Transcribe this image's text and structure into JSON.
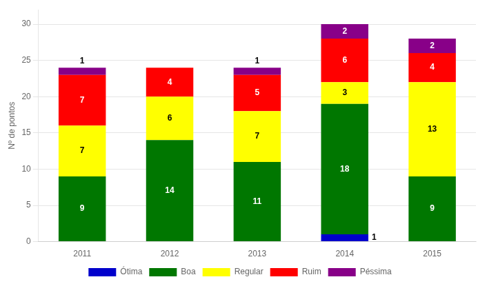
{
  "chart_data": {
    "type": "bar",
    "stacked": true,
    "categories": [
      "2011",
      "2012",
      "2013",
      "2014",
      "2015"
    ],
    "series": [
      {
        "name": "Ótima",
        "color": "#0000CC",
        "values": [
          0,
          0,
          0,
          1,
          0
        ]
      },
      {
        "name": "Boa",
        "color": "#007700",
        "values": [
          9,
          14,
          11,
          18,
          9
        ]
      },
      {
        "name": "Regular",
        "color": "#FFFF00",
        "values": [
          7,
          6,
          7,
          3,
          13
        ]
      },
      {
        "name": "Ruim",
        "color": "#FF0000",
        "values": [
          7,
          4,
          5,
          6,
          4
        ]
      },
      {
        "name": "Péssima",
        "color": "#880088",
        "values": [
          1,
          0,
          1,
          2,
          2
        ]
      }
    ],
    "ylabel": "Nº de pontos",
    "ylim": [
      0,
      32
    ],
    "yticks": [
      0,
      5,
      10,
      15,
      20,
      25,
      30
    ],
    "grid": true,
    "legend": "bottom",
    "data_labels": true
  }
}
